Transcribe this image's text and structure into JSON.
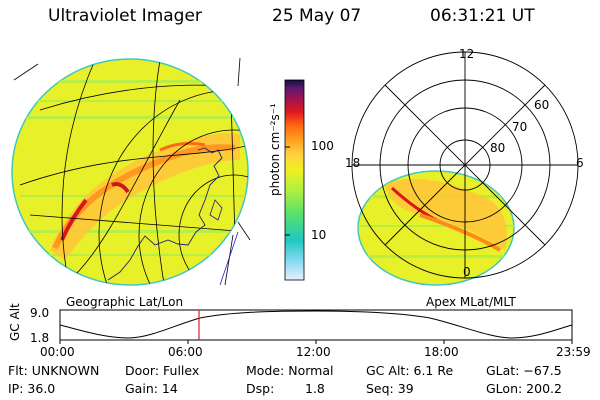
{
  "header": {
    "instrument": "Ultraviolet Imager",
    "date": "25 May 07",
    "time": "06:31:21 UT"
  },
  "colorbar": {
    "ticks": [
      "100",
      "10"
    ],
    "unit_label": "photon cm⁻²s⁻¹",
    "colors": [
      "#101040",
      "#5a1870",
      "#9a1450",
      "#e01820",
      "#ff6a10",
      "#ffa020",
      "#ffd040",
      "#f0f020",
      "#b0f040",
      "#50e070",
      "#20c8c0",
      "#80d8f0",
      "#e8f0ff"
    ]
  },
  "left_panel": {
    "label": "Geographic Lat/Lon"
  },
  "right_panel": {
    "label": "Apex MLat/MLT",
    "mlt_labels": {
      "top": "12",
      "left": "18",
      "right": "6",
      "bottom": "0"
    },
    "lat_labels": [
      "60",
      "70",
      "80"
    ]
  },
  "altitude_plot": {
    "ylabel": "GC Alt",
    "y_ticks": [
      "9.0",
      "1.8"
    ],
    "x_ticks": [
      "00:00",
      "06:00",
      "12:00",
      "18:00",
      "23:59"
    ],
    "current_time_marker": "06:31"
  },
  "status": {
    "flt": "Flt: UNKNOWN",
    "door": "Door: Fullex",
    "mode": "Mode: Normal",
    "gc_alt": "GC Alt: 6.1 Re",
    "glat": "GLat: −67.5",
    "ip": "IP: 36.0",
    "gain": "Gain: 14",
    "dsp_label": "Dsp:",
    "dsp_value": "1.8",
    "seq": "Seq: 39",
    "glon": "GLon: 200.2"
  }
}
